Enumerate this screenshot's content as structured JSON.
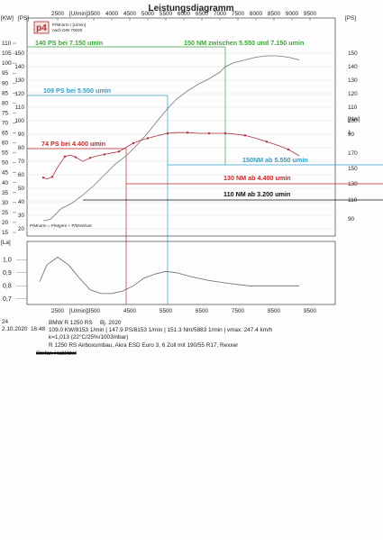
{
  "title": "Leistungsdiagramm",
  "chart_data": {
    "type": "line",
    "title": "Leistungsdiagramm",
    "main_x_ticks": [
      2500,
      3500,
      4000,
      4500,
      5000,
      5500,
      6000,
      6500,
      7000,
      7500,
      8000,
      8500,
      9000,
      9500
    ],
    "main_x_label": "[U/min]",
    "bottom_x_ticks": [
      2500,
      3500,
      4500,
      5500,
      6500,
      7500,
      8500,
      9500
    ],
    "bottom_x_label": "[U/min]",
    "ps_axis": {
      "unit_top": "[PS]",
      "unit_left": "[KW]",
      "ticks": [
        15,
        20,
        25,
        30,
        35,
        40,
        45,
        50,
        55,
        60,
        65,
        70,
        75,
        80,
        85,
        90,
        95,
        100,
        105,
        110
      ],
      "inner_ticks": [
        20,
        30,
        40,
        50,
        60,
        70,
        80,
        90,
        100,
        110,
        120,
        130,
        140,
        150
      ],
      "right_ticks": [
        90,
        100,
        110,
        120,
        130,
        140,
        150
      ]
    },
    "nm_axis": {
      "unit": "[Nm]",
      "ticks": [
        90,
        110,
        130,
        150,
        170,
        1
      ]
    },
    "la_axis": {
      "unit": "[La]",
      "ticks": [
        0.7,
        0.8,
        0.9,
        1.0
      ]
    },
    "series": [
      {
        "name": "P/Mnorm",
        "unit": "PS",
        "points": [
          [
            2100,
            26
          ],
          [
            2300,
            27
          ],
          [
            2600,
            35
          ],
          [
            2900,
            39
          ],
          [
            3200,
            45
          ],
          [
            3500,
            52
          ],
          [
            3800,
            60
          ],
          [
            4100,
            68
          ],
          [
            4400,
            74
          ],
          [
            4700,
            82
          ],
          [
            5000,
            91
          ],
          [
            5300,
            101
          ],
          [
            5550,
            109
          ],
          [
            5800,
            116
          ],
          [
            6100,
            122
          ],
          [
            6400,
            127
          ],
          [
            6700,
            131
          ],
          [
            7000,
            136
          ],
          [
            7150,
            140
          ],
          [
            7400,
            143
          ],
          [
            7700,
            145
          ],
          [
            8000,
            147
          ],
          [
            8300,
            148
          ],
          [
            8600,
            148
          ],
          [
            8900,
            147
          ],
          [
            9200,
            145
          ]
        ]
      },
      {
        "name": "M",
        "unit": "Nm",
        "points": [
          [
            2100,
            87
          ],
          [
            2200,
            85
          ],
          [
            2350,
            88
          ],
          [
            2500,
            102
          ],
          [
            2700,
            117
          ],
          [
            2850,
            119
          ],
          [
            3000,
            116
          ],
          [
            3200,
            110
          ],
          [
            3400,
            115
          ],
          [
            3600,
            118
          ],
          [
            3800,
            120
          ],
          [
            4000,
            122
          ],
          [
            4200,
            124
          ],
          [
            4400,
            130
          ],
          [
            4600,
            136
          ],
          [
            4800,
            140
          ],
          [
            5000,
            143
          ],
          [
            5300,
            147
          ],
          [
            5550,
            150
          ],
          [
            5800,
            151
          ],
          [
            6100,
            151
          ],
          [
            6400,
            150
          ],
          [
            6700,
            150
          ],
          [
            7000,
            150
          ],
          [
            7150,
            150
          ],
          [
            7400,
            149
          ],
          [
            7700,
            147
          ],
          [
            8000,
            143
          ],
          [
            8300,
            138
          ],
          [
            8600,
            133
          ],
          [
            8900,
            127
          ],
          [
            9200,
            118
          ]
        ]
      },
      {
        "name": "La",
        "unit": "La",
        "points": [
          [
            2000,
            0.83
          ],
          [
            2200,
            0.96
          ],
          [
            2500,
            1.02
          ],
          [
            2800,
            0.96
          ],
          [
            3100,
            0.86
          ],
          [
            3400,
            0.77
          ],
          [
            3700,
            0.74
          ],
          [
            4000,
            0.74
          ],
          [
            4300,
            0.76
          ],
          [
            4600,
            0.8
          ],
          [
            4900,
            0.86
          ],
          [
            5200,
            0.89
          ],
          [
            5500,
            0.91
          ],
          [
            5800,
            0.9
          ],
          [
            6200,
            0.87
          ],
          [
            6700,
            0.84
          ],
          [
            7200,
            0.82
          ],
          [
            7800,
            0.8
          ],
          [
            8300,
            0.8
          ],
          [
            8800,
            0.8
          ],
          [
            9200,
            0.8
          ]
        ]
      }
    ],
    "annotations": [
      {
        "text": "140 PS bei 7.150 umin",
        "color": "#3aa53a"
      },
      {
        "text": "150 NM zwischen 5.550 und 7.150 umin",
        "color": "#3aa53a"
      },
      {
        "text": "109 PS bei 5.550 umin",
        "color": "#2f9fc9"
      },
      {
        "text": "150NM ab 5.550 umin",
        "color": "#2f9fc9"
      },
      {
        "text": "74 PS bei 4.400 umin",
        "color": "#c0282c"
      },
      {
        "text": "130 NM ab 4.400 umin",
        "color": "#c0282c"
      },
      {
        "text": "110 NM ab 3.200 umin",
        "color": "#111111"
      }
    ],
    "legend_logo": "p4",
    "legend_lines": [
      "P/Mnorm / [U/min]",
      "nach DIN 70020"
    ],
    "footer_legend": "P/Mnorm = P/Mgere + P/MVerlust"
  },
  "info": {
    "number": "24",
    "date": "2.10.2020",
    "time": "16:48",
    "model": "BMW R 1250 RS",
    "year": "Bj. 2020",
    "line2": "109.0 KW/8153 1/min  |  147.9 PS/8153 1/min  |  151.3 Nm/5883 1/min  | vmax: 247.4 km/h",
    "line3": "k=1,013 (22°C/25%/1003mbar)",
    "line4": "R 1250 RS  Airboxumbau, Akra ESD Euro 3, 6 Zoll mit 190/55 R17,  Rexxer",
    "line5": "Stefan Hablitzel"
  }
}
